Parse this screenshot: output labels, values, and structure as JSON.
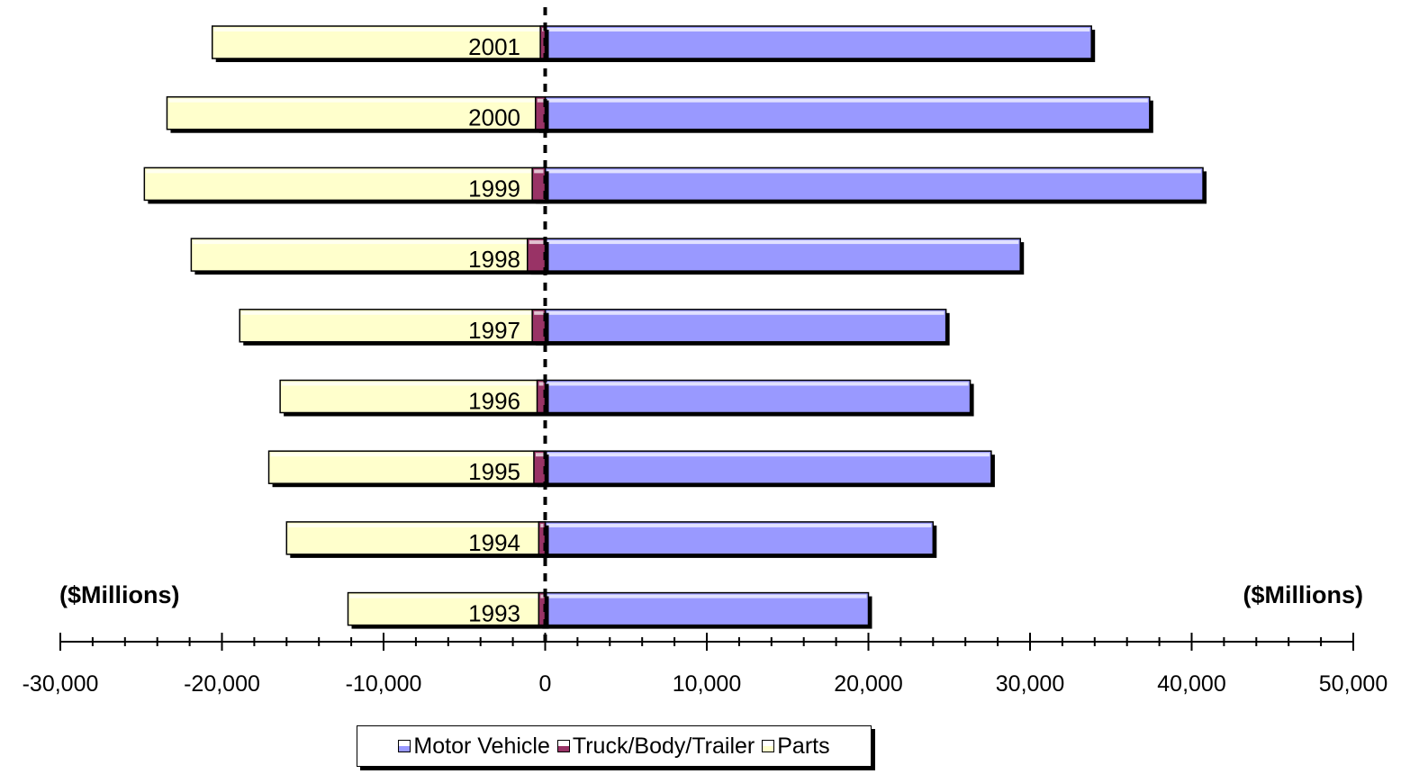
{
  "chart_data": {
    "type": "bar",
    "orientation": "horizontal",
    "stacked": true,
    "categories": [
      "1993",
      "1994",
      "1995",
      "1996",
      "1997",
      "1998",
      "1999",
      "2000",
      "2001"
    ],
    "series": [
      {
        "name": "Motor Vehicle",
        "color": "#9999ff",
        "values": [
          20000,
          24000,
          27600,
          26300,
          24800,
          29400,
          40700,
          37400,
          33800
        ]
      },
      {
        "name": "Truck/Body/Trailer",
        "color": "#993366",
        "values": [
          -400,
          -400,
          -700,
          -500,
          -800,
          -1100,
          -800,
          -600,
          -300
        ]
      },
      {
        "name": "Parts",
        "color": "#ffffcc",
        "values": [
          -11800,
          -15600,
          -16400,
          -15900,
          -18100,
          -20800,
          -24000,
          -22800,
          -20300
        ]
      }
    ],
    "xlim": [
      -30000,
      50000
    ],
    "xticks": [
      -30000,
      -20000,
      -10000,
      0,
      10000,
      20000,
      30000,
      40000,
      50000
    ],
    "xtick_labels": [
      "-30,000",
      "-20,000",
      "-10,000",
      "0",
      "10,000",
      "20,000",
      "30,000",
      "40,000",
      "50,000"
    ],
    "unit_label_left": "($Millions)",
    "unit_label_right": "($Millions)",
    "legend_position": "bottom",
    "zero_line": "dashed"
  }
}
